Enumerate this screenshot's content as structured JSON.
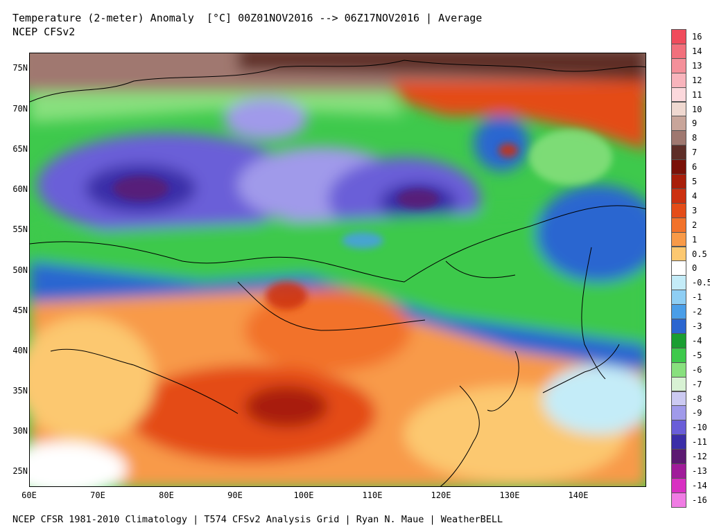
{
  "header": {
    "title_line1": "Temperature (2-meter) Anomaly  [°C] 00Z01NOV2016 --> 06Z17NOV2016 | Average",
    "title_line2": "NCEP CFSv2"
  },
  "footer": {
    "text": "NCEP CFSR 1981-2010 Climatology | T574 CFSv2 Analysis Grid | Ryan N. Maue | WeatherBELL"
  },
  "map": {
    "lat_ticks": [
      "75N",
      "70N",
      "65N",
      "60N",
      "55N",
      "50N",
      "45N",
      "40N",
      "35N",
      "30N",
      "25N"
    ],
    "lon_ticks": [
      "60E",
      "70E",
      "80E",
      "90E",
      "100E",
      "110E",
      "120E",
      "130E",
      "140E"
    ]
  },
  "colorbar": {
    "labels": [
      "16",
      "14",
      "13",
      "12",
      "11",
      "10",
      "9",
      "8",
      "7",
      "6",
      "5",
      "4",
      "3",
      "2",
      "1",
      "0.5",
      "0",
      "-0.5",
      "-1",
      "-2",
      "-3",
      "-4",
      "-5",
      "-6",
      "-7",
      "-8",
      "-9",
      "-10",
      "-11",
      "-12",
      "-13",
      "-14",
      "-16"
    ],
    "colors": [
      "#f04c5c",
      "#f2707c",
      "#f4909a",
      "#f8b4bc",
      "#fbd8dc",
      "#efd8d0",
      "#c8a59a",
      "#9f7870",
      "#5e2e28",
      "#7a1108",
      "#a81e0a",
      "#cc3010",
      "#e44c18",
      "#f2722a",
      "#f89a48",
      "#fcc870",
      "#ffffff",
      "#c4ecf8",
      "#8ecef4",
      "#4a9ee8",
      "#2b66d0",
      "#1a9e32",
      "#3ec94c",
      "#88e07e",
      "#d8f2d4",
      "#cccaf2",
      "#a09aea",
      "#6a5ed8",
      "#3b2ea8",
      "#5c1a72",
      "#a01c9a",
      "#d830c2",
      "#f07ce4"
    ]
  },
  "icons": {
    "coastline": "coastline-lines",
    "borders": "country-borders"
  }
}
